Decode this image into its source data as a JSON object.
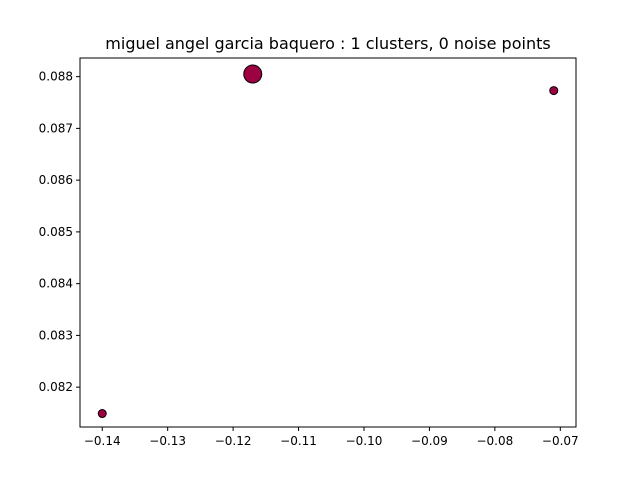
{
  "chart_data": {
    "type": "scatter",
    "title": "miguel angel garcia baquero : 1 clusters, 0 noise points",
    "xlabel": "",
    "ylabel": "",
    "xlim": [
      -0.1434,
      -0.0676
    ],
    "ylim": [
      0.08123,
      0.08836
    ],
    "xticks": [
      -0.14,
      -0.13,
      -0.12,
      -0.11,
      -0.1,
      -0.09,
      -0.08,
      -0.07
    ],
    "xtick_labels": [
      "−0.14",
      "−0.13",
      "−0.12",
      "−0.11",
      "−0.10",
      "−0.09",
      "−0.08",
      "−0.07"
    ],
    "yticks": [
      0.082,
      0.083,
      0.084,
      0.085,
      0.086,
      0.087,
      0.088
    ],
    "ytick_labels": [
      "0.082",
      "0.083",
      "0.084",
      "0.085",
      "0.086",
      "0.087",
      "0.088"
    ],
    "grid": false,
    "legend": "none",
    "marker_color": "#9e0142",
    "marker_edge_color": "#000000",
    "series": [
      {
        "cluster": 0,
        "points": [
          {
            "x": -0.14,
            "y": 0.08149,
            "core": false
          },
          {
            "x": -0.117,
            "y": 0.08805,
            "core": true
          },
          {
            "x": -0.071,
            "y": 0.08773,
            "core": false
          }
        ]
      }
    ]
  }
}
